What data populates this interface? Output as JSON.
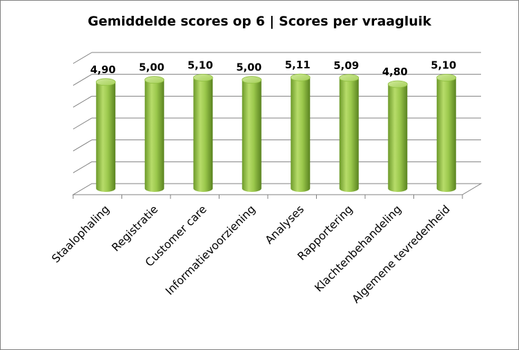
{
  "chart_data": {
    "type": "bar",
    "style": "3d-cylinder",
    "title": "Gemiddelde scores op 6 | Scores per vraagluik",
    "categories": [
      "Staalophaling",
      "Registratie",
      "Customer care",
      "Informatievoorziening",
      "Analyses",
      "Rapportering",
      "Klachtenbehandeling",
      "Algemene tevredenheid"
    ],
    "values": [
      4.9,
      5.0,
      5.1,
      5.0,
      5.11,
      5.09,
      4.8,
      5.1
    ],
    "data_labels": [
      "4,90",
      "5,00",
      "5,10",
      "5,00",
      "5,11",
      "5,09",
      "4,80",
      "5,10"
    ],
    "ylim": [
      0,
      6
    ],
    "grid": true,
    "legend": "none",
    "colors": {
      "bar_light": "#b9dd6c",
      "bar_mid": "#8dbb3c",
      "bar_dark": "#5f8a22",
      "grid": "#808080",
      "floor": "#ffffff"
    }
  }
}
